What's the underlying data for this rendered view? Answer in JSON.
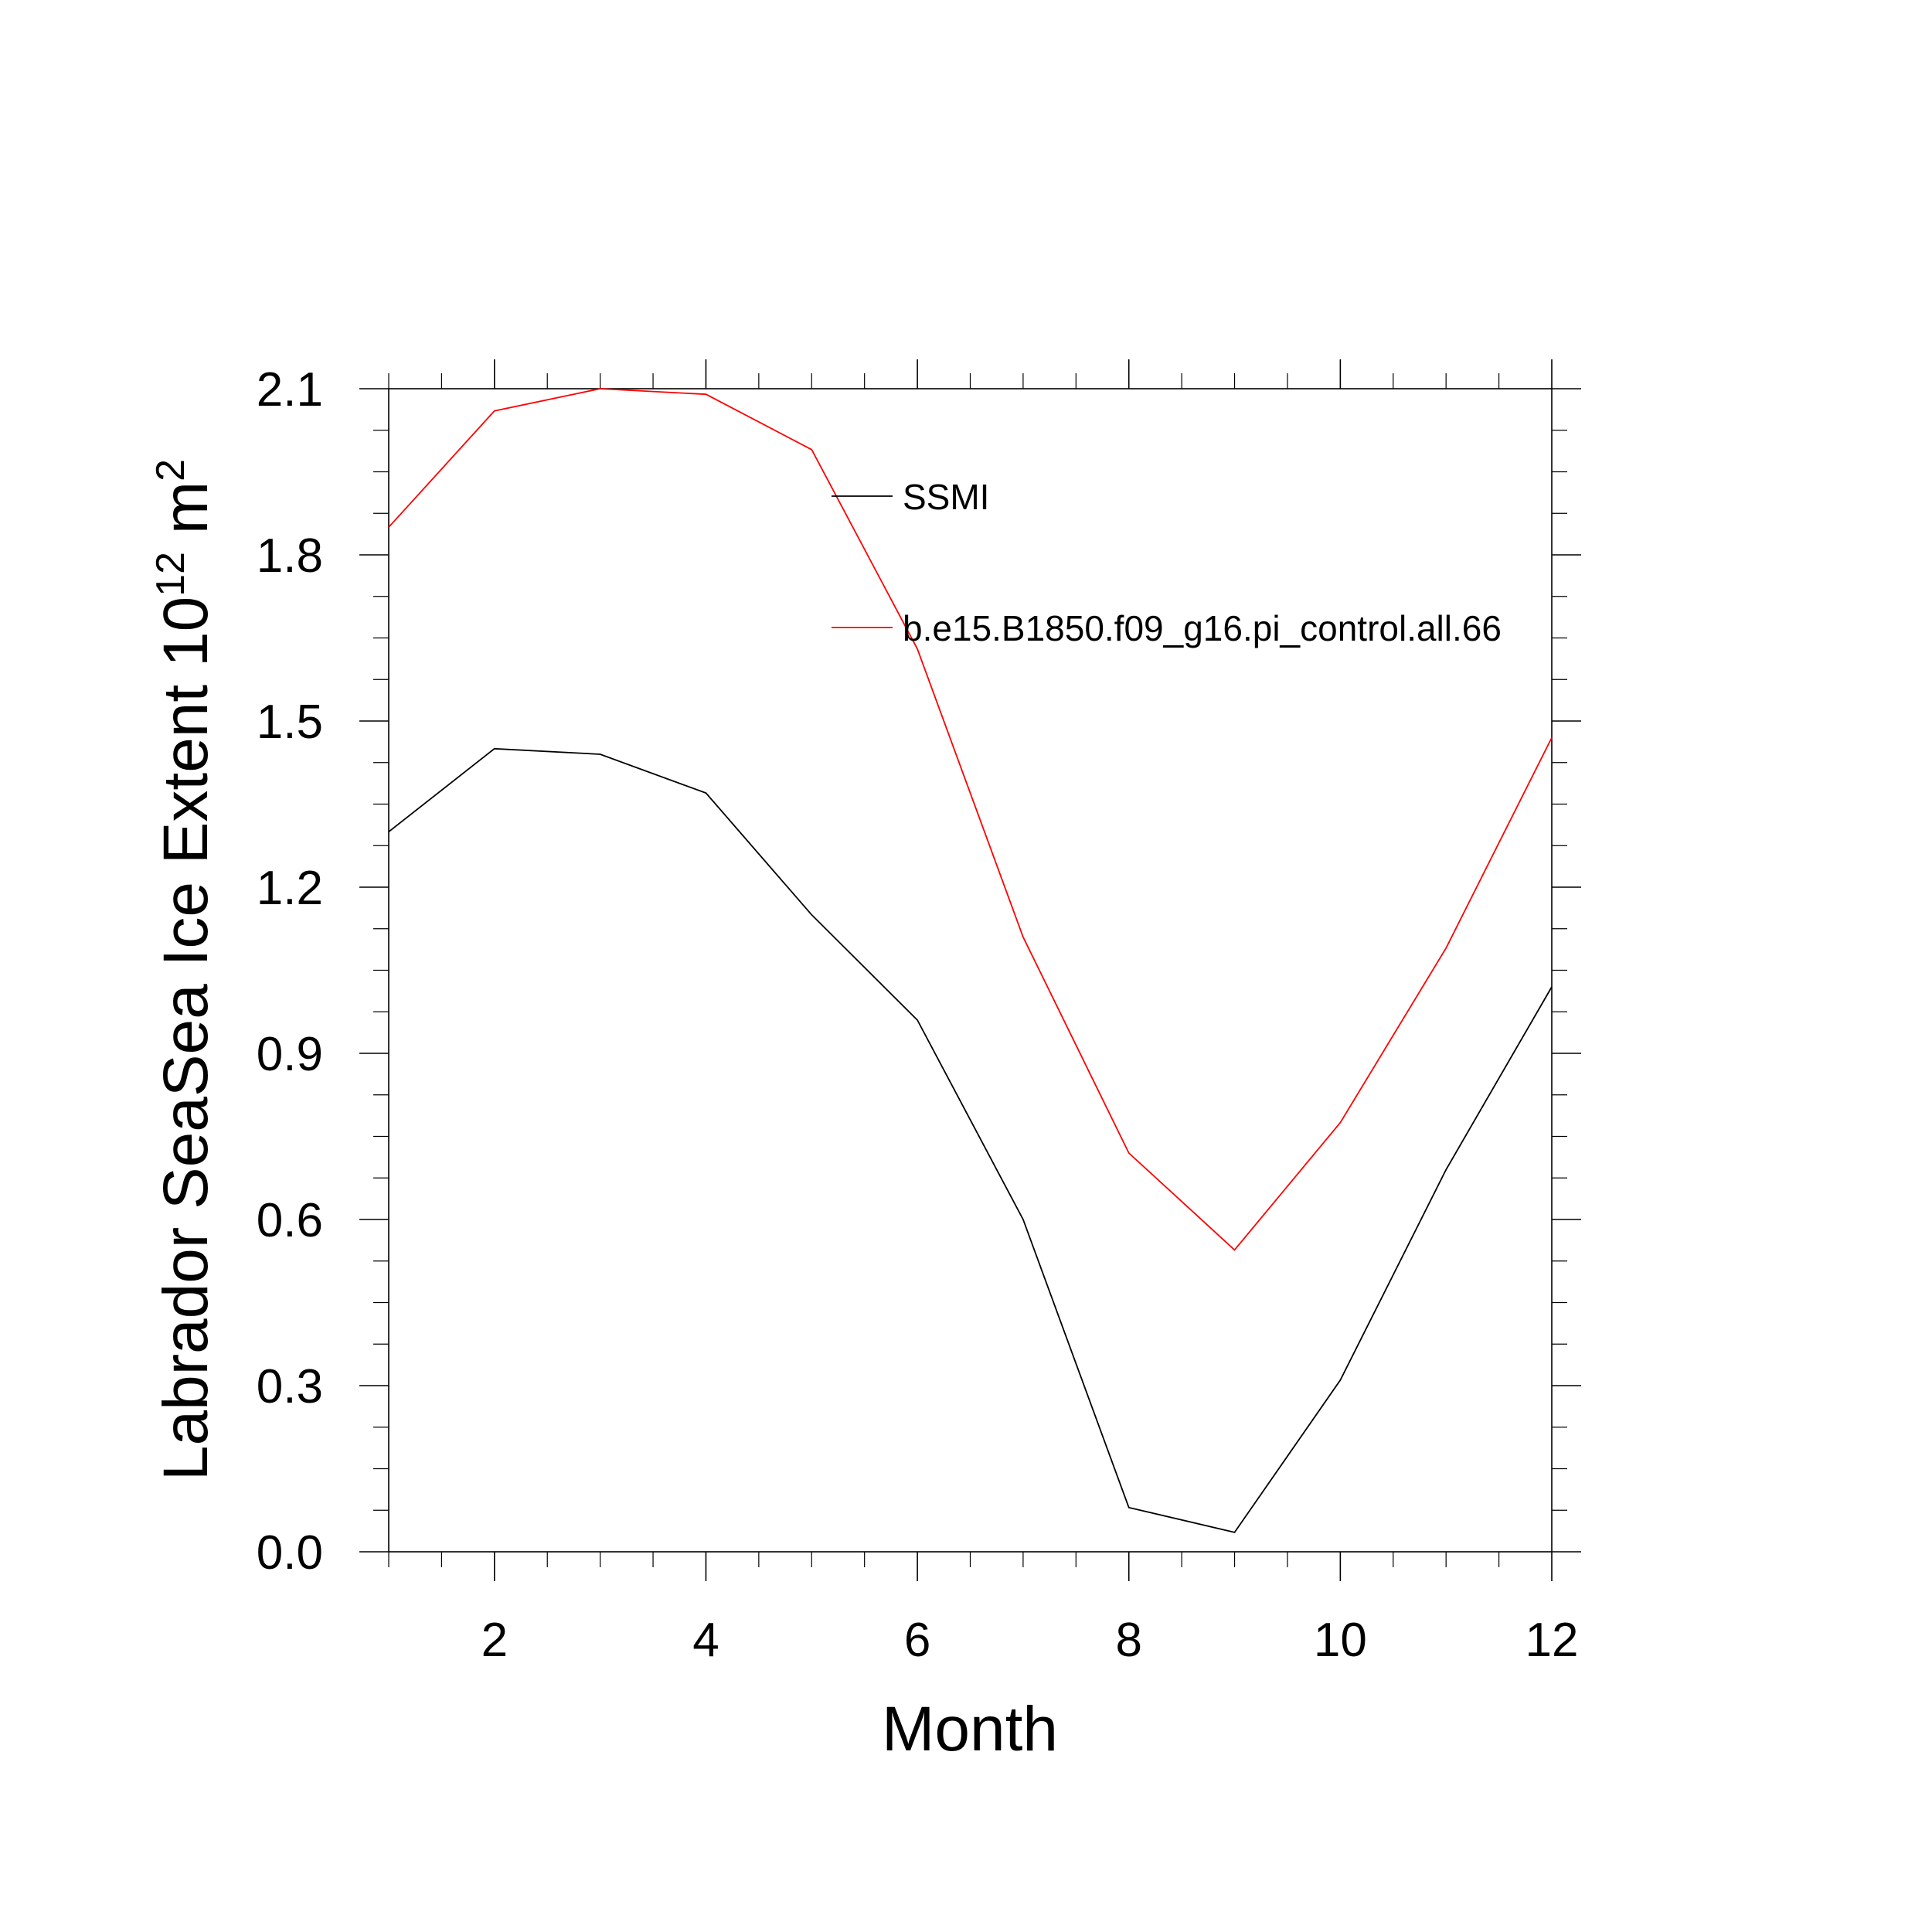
{
  "chart_data": {
    "type": "line",
    "title": "",
    "xlabel": "Month",
    "ylabel": "Labrador SeaSea Ice Extent 10",
    "ylabel_sup": "12",
    "ylabel_unit": "m",
    "ylabel_unit_sup": "2",
    "xlim": [
      1,
      12
    ],
    "ylim": [
      0.0,
      2.1
    ],
    "x_ticks": [
      2,
      4,
      6,
      8,
      10,
      12
    ],
    "x_tick_labels": [
      "2",
      "4",
      "6",
      "8",
      "10",
      "12"
    ],
    "y_ticks": [
      0.0,
      0.3,
      0.6,
      0.9,
      1.2,
      1.5,
      1.8,
      2.1
    ],
    "y_tick_labels": [
      "0.0",
      "0.3",
      "0.6",
      "0.9",
      "1.2",
      "1.5",
      "1.8",
      "2.1"
    ],
    "grid": false,
    "legend_placement": "inside-top-right",
    "x": [
      1,
      2,
      3,
      4,
      5,
      6,
      7,
      8,
      9,
      10,
      11,
      12
    ],
    "series": [
      {
        "name": "SSMI",
        "color": "#000000",
        "values": [
          1.3,
          1.45,
          1.44,
          1.37,
          1.15,
          0.96,
          0.6,
          0.08,
          0.035,
          0.31,
          0.69,
          1.02
        ]
      },
      {
        "name": "b.e15.B1850.f09_g16.pi_control.all.66",
        "color": "#ff0000",
        "values": [
          1.85,
          2.06,
          2.1,
          2.09,
          1.99,
          1.63,
          1.11,
          0.72,
          0.545,
          0.775,
          1.09,
          1.47
        ]
      }
    ]
  }
}
